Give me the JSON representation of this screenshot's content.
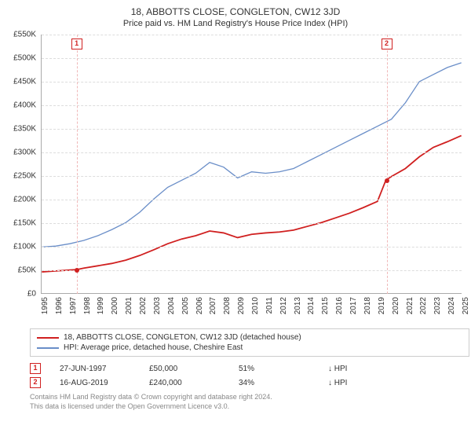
{
  "titles": {
    "main": "18, ABBOTTS CLOSE, CONGLETON, CW12 3JD",
    "sub": "Price paid vs. HM Land Registry's House Price Index (HPI)"
  },
  "chart": {
    "type": "line",
    "background_color": "#ffffff",
    "grid_color": "#dddddd",
    "axis_color": "#aaaaaa",
    "text_color": "#333333",
    "label_fontsize": 10,
    "title_fontsize": 12,
    "x": {
      "min": 1995,
      "max": 2025,
      "ticks": [
        1995,
        1996,
        1997,
        1998,
        1999,
        2000,
        2001,
        2002,
        2003,
        2004,
        2005,
        2006,
        2007,
        2008,
        2009,
        2010,
        2011,
        2012,
        2013,
        2014,
        2015,
        2016,
        2017,
        2018,
        2019,
        2020,
        2021,
        2022,
        2023,
        2024,
        2025
      ]
    },
    "y": {
      "min": 0,
      "max": 550000,
      "ticks": [
        0,
        50000,
        100000,
        150000,
        200000,
        250000,
        300000,
        350000,
        400000,
        450000,
        500000,
        550000
      ],
      "tick_labels": [
        "£0",
        "£50K",
        "£100K",
        "£150K",
        "£200K",
        "£250K",
        "£300K",
        "£350K",
        "£400K",
        "£450K",
        "£500K",
        "£550K"
      ]
    },
    "series": [
      {
        "id": "price_paid",
        "label": "18, ABBOTTS CLOSE, CONGLETON, CW12 3JD (detached house)",
        "color": "#d02020",
        "line_width": 1.8,
        "points": [
          [
            1995.0,
            45000
          ],
          [
            1996.0,
            47000
          ],
          [
            1997.0,
            49000
          ],
          [
            1997.5,
            50000
          ],
          [
            1998.0,
            53000
          ],
          [
            1999.0,
            58000
          ],
          [
            2000.0,
            63000
          ],
          [
            2001.0,
            70000
          ],
          [
            2002.0,
            80000
          ],
          [
            2003.0,
            92000
          ],
          [
            2004.0,
            105000
          ],
          [
            2005.0,
            115000
          ],
          [
            2006.0,
            122000
          ],
          [
            2007.0,
            132000
          ],
          [
            2008.0,
            128000
          ],
          [
            2009.0,
            118000
          ],
          [
            2010.0,
            125000
          ],
          [
            2011.0,
            128000
          ],
          [
            2012.0,
            130000
          ],
          [
            2013.0,
            134000
          ],
          [
            2014.0,
            142000
          ],
          [
            2015.0,
            150000
          ],
          [
            2016.0,
            160000
          ],
          [
            2017.0,
            170000
          ],
          [
            2018.0,
            182000
          ],
          [
            2019.0,
            195000
          ],
          [
            2019.6,
            240000
          ],
          [
            2020.0,
            248000
          ],
          [
            2021.0,
            265000
          ],
          [
            2022.0,
            290000
          ],
          [
            2023.0,
            310000
          ],
          [
            2024.0,
            322000
          ],
          [
            2025.0,
            335000
          ]
        ]
      },
      {
        "id": "hpi",
        "label": "HPI: Average price, detached house, Cheshire East",
        "color": "#6a8ec8",
        "line_width": 1.3,
        "points": [
          [
            1995.0,
            98000
          ],
          [
            1996.0,
            100000
          ],
          [
            1997.0,
            105000
          ],
          [
            1998.0,
            112000
          ],
          [
            1999.0,
            122000
          ],
          [
            2000.0,
            135000
          ],
          [
            2001.0,
            150000
          ],
          [
            2002.0,
            172000
          ],
          [
            2003.0,
            200000
          ],
          [
            2004.0,
            225000
          ],
          [
            2005.0,
            240000
          ],
          [
            2006.0,
            255000
          ],
          [
            2007.0,
            278000
          ],
          [
            2008.0,
            268000
          ],
          [
            2009.0,
            245000
          ],
          [
            2010.0,
            258000
          ],
          [
            2011.0,
            255000
          ],
          [
            2012.0,
            258000
          ],
          [
            2013.0,
            265000
          ],
          [
            2014.0,
            280000
          ],
          [
            2015.0,
            295000
          ],
          [
            2016.0,
            310000
          ],
          [
            2017.0,
            325000
          ],
          [
            2018.0,
            340000
          ],
          [
            2019.0,
            355000
          ],
          [
            2020.0,
            370000
          ],
          [
            2021.0,
            405000
          ],
          [
            2022.0,
            450000
          ],
          [
            2023.0,
            465000
          ],
          [
            2024.0,
            480000
          ],
          [
            2025.0,
            490000
          ]
        ]
      }
    ],
    "markers": [
      {
        "n": "1",
        "year": 1997.5,
        "value": 50000,
        "color": "#d02020",
        "vline_color": "#f0b8b8",
        "date": "27-JUN-1997",
        "price": "£50,000",
        "pct": "51%",
        "note": "↓ HPI"
      },
      {
        "n": "2",
        "year": 2019.6,
        "value": 240000,
        "color": "#d02020",
        "vline_color": "#f0b8b8",
        "date": "16-AUG-2019",
        "price": "£240,000",
        "pct": "34%",
        "note": "↓ HPI"
      }
    ]
  },
  "footer": {
    "line1": "Contains HM Land Registry data © Crown copyright and database right 2024.",
    "line2": "This data is licensed under the Open Government Licence v3.0."
  }
}
